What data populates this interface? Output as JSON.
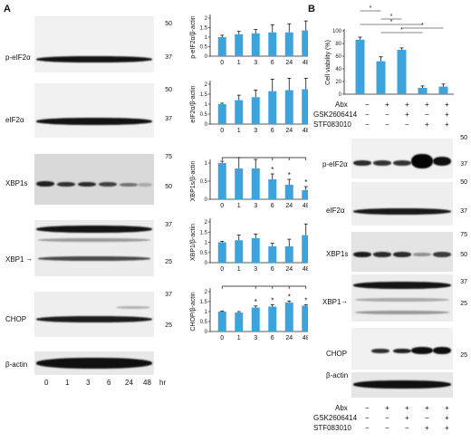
{
  "colors": {
    "bar": "#3da3dc",
    "blot_light": "#f1f1f1",
    "blot_gray": "#d9d9d9",
    "band": "#141414"
  },
  "panels": {
    "a": "A",
    "b": "B"
  },
  "panel_a": {
    "blots": [
      {
        "label": "p-eIF2α",
        "markers": [
          "50",
          "37"
        ]
      },
      {
        "label": "eIF2α",
        "markers": [
          "50",
          "37"
        ]
      },
      {
        "label": "XBP1s",
        "markers": [
          "75",
          "50"
        ]
      },
      {
        "label": "XBP1",
        "markers": [
          "37",
          "25"
        ]
      },
      {
        "label": "CHOP",
        "markers": [
          "37",
          "25"
        ]
      },
      {
        "label": "β-actin",
        "markers": []
      }
    ],
    "time_labels": [
      "0",
      "1",
      "3",
      "6",
      "24",
      "48"
    ],
    "time_unit": "hr"
  },
  "panel_b": {
    "blots": [
      {
        "label": "p-eIF2α",
        "markers": [
          "50",
          "37"
        ]
      },
      {
        "label": "eIF2α",
        "markers": [
          "50",
          "37"
        ]
      },
      {
        "label": "XBP1s",
        "markers": [
          "75",
          "50"
        ]
      },
      {
        "label": "XBP1",
        "markers": [
          "37",
          "25"
        ]
      },
      {
        "label": "CHOP",
        "markers": [
          "25"
        ]
      },
      {
        "label": "β-actin",
        "markers": []
      }
    ],
    "treatments": [
      {
        "name": "Abx",
        "signs": [
          "−",
          "+",
          "+",
          "+",
          "+"
        ]
      },
      {
        "name": "GSK2606414",
        "signs": [
          "−",
          "−",
          "+",
          "−",
          "+"
        ]
      },
      {
        "name": "STF083010",
        "signs": [
          "−",
          "−",
          "−",
          "+",
          "+"
        ]
      }
    ]
  },
  "chart_data": [
    {
      "type": "bar",
      "ylabel": "p-eIF2α/β-actin",
      "categories": [
        "0",
        "1",
        "3",
        "6",
        "24",
        "48"
      ],
      "xunit": "hr",
      "values": [
        1.0,
        1.15,
        1.2,
        1.25,
        1.25,
        1.35
      ],
      "errors": [
        0.1,
        0.15,
        0.2,
        0.4,
        0.45,
        0.5
      ],
      "ylim": [
        0,
        2
      ],
      "yticks": [
        "0",
        "0.5",
        "1",
        "1.5",
        "2"
      ],
      "significant": []
    },
    {
      "type": "bar",
      "ylabel": "eIF2α/β-actin",
      "categories": [
        "0",
        "1",
        "3",
        "6",
        "24",
        "48"
      ],
      "xunit": "hr",
      "values": [
        1.0,
        1.2,
        1.35,
        1.65,
        1.7,
        1.75
      ],
      "errors": [
        0.05,
        0.25,
        0.35,
        0.6,
        0.6,
        0.55
      ],
      "ylim": [
        0,
        2
      ],
      "yticks": [
        "0",
        "0.5",
        "1",
        "1.5",
        "2"
      ],
      "significant": []
    },
    {
      "type": "bar",
      "ylabel": "XBP1s/β-actin",
      "categories": [
        "0",
        "1",
        "3",
        "6",
        "24",
        "48"
      ],
      "xunit": "hr",
      "values": [
        1.0,
        0.85,
        0.85,
        0.55,
        0.4,
        0.25
      ],
      "errors": [
        0.05,
        0.3,
        0.25,
        0.15,
        0.15,
        0.1
      ],
      "ylim": [
        0,
        1
      ],
      "yticks": [
        "0",
        "0.5",
        "1"
      ],
      "significant": [
        3,
        4,
        5
      ],
      "star": "*"
    },
    {
      "type": "bar",
      "ylabel": "XBP1/β-actin",
      "categories": [
        "0",
        "1",
        "3",
        "6",
        "24",
        "48"
      ],
      "xunit": "hr",
      "values": [
        1.0,
        1.1,
        1.2,
        0.8,
        0.8,
        1.35
      ],
      "errors": [
        0.05,
        0.25,
        0.2,
        0.15,
        0.35,
        0.55
      ],
      "ylim": [
        0,
        2
      ],
      "yticks": [
        "0",
        "0.5",
        "1",
        "1.5",
        "2"
      ],
      "significant": []
    },
    {
      "type": "bar",
      "ylabel": "CHOP/β-actin",
      "categories": [
        "0",
        "1",
        "3",
        "6",
        "24",
        "48"
      ],
      "xunit": "hr",
      "values": [
        1.0,
        0.95,
        1.2,
        1.25,
        1.45,
        1.3
      ],
      "errors": [
        0.03,
        0.05,
        0.08,
        0.1,
        0.08,
        0.05
      ],
      "ylim": [
        0,
        2
      ],
      "yticks": [
        "0",
        "0.5",
        "1",
        "1.5",
        "2"
      ],
      "significant": [
        2,
        3,
        4,
        5
      ],
      "star": "*"
    },
    {
      "type": "bar",
      "ylabel": "Cell viability (%)",
      "categories": [
        "1",
        "2",
        "3",
        "4",
        "5"
      ],
      "values": [
        86,
        52,
        70,
        10,
        12
      ],
      "errors": [
        4,
        7,
        3,
        3,
        4
      ],
      "ylim": [
        0,
        100
      ],
      "yticks": [
        "0",
        "20",
        "40",
        "60",
        "80",
        "100"
      ],
      "star": "*",
      "comparisons": [
        [
          0,
          1
        ],
        [
          0,
          3
        ],
        [
          1,
          2
        ],
        [
          1,
          3
        ],
        [
          2,
          4
        ]
      ]
    }
  ]
}
